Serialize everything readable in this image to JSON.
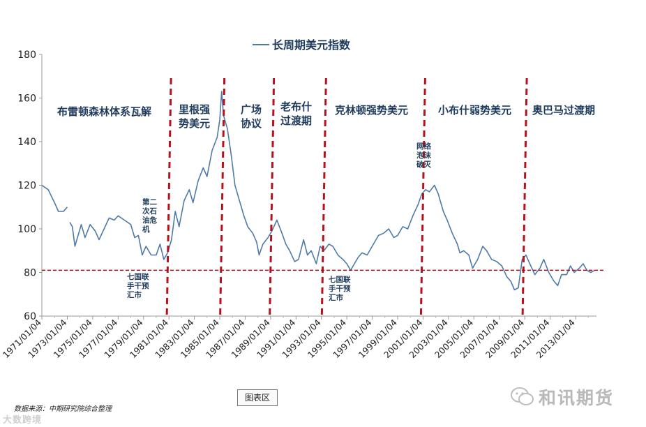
{
  "chart_data": {
    "type": "line",
    "title": "长周期美元指数",
    "xlabel": "",
    "ylabel": "",
    "ylim": [
      60,
      180
    ],
    "yticks": [
      60,
      80,
      100,
      120,
      140,
      160,
      180
    ],
    "reference_line": 81,
    "xticks": [
      "1971/01/04",
      "1973/01/04",
      "1975/01/04",
      "1977/01/04",
      "1979/01/04",
      "1981/01/04",
      "1983/01/04",
      "1985/01/04",
      "1987/01/04",
      "1989/01/04",
      "1991/01/04",
      "1993/01/04",
      "1995/01/04",
      "1997/01/04",
      "1999/01/04",
      "2001/01/04",
      "2003/01/04",
      "2005/01/04",
      "2007/01/04",
      "2009/01/04",
      "2011/01/04",
      "2013/01/04"
    ],
    "series": [
      {
        "name": "长周期美元指数",
        "color": "#4f7aa8",
        "points": [
          [
            1971.0,
            120
          ],
          [
            1971.5,
            118
          ],
          [
            1972.0,
            112
          ],
          [
            1972.3,
            108
          ],
          [
            1972.7,
            108
          ],
          [
            1973.0,
            110
          ],
          [
            1973.2,
            103
          ],
          [
            1973.4,
            101
          ],
          [
            1973.6,
            92
          ],
          [
            1973.8,
            96
          ],
          [
            1974.1,
            102
          ],
          [
            1974.4,
            96
          ],
          [
            1974.8,
            102
          ],
          [
            1975.2,
            99
          ],
          [
            1975.5,
            95
          ],
          [
            1975.9,
            100
          ],
          [
            1976.3,
            105
          ],
          [
            1976.7,
            104
          ],
          [
            1977.0,
            106
          ],
          [
            1977.5,
            104
          ],
          [
            1978.0,
            102
          ],
          [
            1978.3,
            96
          ],
          [
            1978.6,
            97
          ],
          [
            1978.9,
            88
          ],
          [
            1979.2,
            92
          ],
          [
            1979.6,
            88
          ],
          [
            1980.0,
            88
          ],
          [
            1980.3,
            93
          ],
          [
            1980.6,
            86
          ],
          [
            1980.9,
            89
          ],
          [
            1981.2,
            95
          ],
          [
            1981.5,
            108
          ],
          [
            1981.8,
            101
          ],
          [
            1982.2,
            113
          ],
          [
            1982.6,
            118
          ],
          [
            1982.9,
            112
          ],
          [
            1983.3,
            122
          ],
          [
            1983.7,
            128
          ],
          [
            1984.0,
            124
          ],
          [
            1984.4,
            136
          ],
          [
            1984.8,
            142
          ],
          [
            1985.0,
            150
          ],
          [
            1985.15,
            163
          ],
          [
            1985.3,
            152
          ],
          [
            1985.6,
            146
          ],
          [
            1985.9,
            134
          ],
          [
            1986.2,
            120
          ],
          [
            1986.6,
            112
          ],
          [
            1986.9,
            106
          ],
          [
            1987.2,
            101
          ],
          [
            1987.6,
            98
          ],
          [
            1987.9,
            94
          ],
          [
            1988.1,
            88
          ],
          [
            1988.4,
            93
          ],
          [
            1988.8,
            96
          ],
          [
            1989.1,
            99
          ],
          [
            1989.5,
            104
          ],
          [
            1989.9,
            98
          ],
          [
            1990.2,
            93
          ],
          [
            1990.5,
            90
          ],
          [
            1990.9,
            85
          ],
          [
            1991.2,
            86
          ],
          [
            1991.6,
            95
          ],
          [
            1991.9,
            88
          ],
          [
            1992.2,
            90
          ],
          [
            1992.6,
            84
          ],
          [
            1992.9,
            92
          ],
          [
            1993.2,
            90
          ],
          [
            1993.6,
            93
          ],
          [
            1993.9,
            92
          ],
          [
            1994.3,
            88
          ],
          [
            1994.7,
            86
          ],
          [
            1995.0,
            84
          ],
          [
            1995.3,
            81
          ],
          [
            1995.6,
            84
          ],
          [
            1995.9,
            87
          ],
          [
            1996.2,
            89
          ],
          [
            1996.6,
            88
          ],
          [
            1997.0,
            92
          ],
          [
            1997.5,
            97
          ],
          [
            1997.9,
            98
          ],
          [
            1998.3,
            100
          ],
          [
            1998.7,
            96
          ],
          [
            1999.0,
            97
          ],
          [
            1999.4,
            101
          ],
          [
            1999.8,
            100
          ],
          [
            2000.2,
            106
          ],
          [
            2000.6,
            111
          ],
          [
            2000.9,
            116
          ],
          [
            2001.2,
            118
          ],
          [
            2001.5,
            117
          ],
          [
            2001.9,
            120
          ],
          [
            2002.2,
            116
          ],
          [
            2002.6,
            108
          ],
          [
            2002.9,
            104
          ],
          [
            2003.3,
            98
          ],
          [
            2003.7,
            93
          ],
          [
            2003.9,
            89
          ],
          [
            2004.2,
            90
          ],
          [
            2004.6,
            88
          ],
          [
            2004.9,
            82
          ],
          [
            2005.3,
            86
          ],
          [
            2005.7,
            92
          ],
          [
            2006.0,
            90
          ],
          [
            2006.4,
            86
          ],
          [
            2006.8,
            85
          ],
          [
            2007.2,
            83
          ],
          [
            2007.6,
            78
          ],
          [
            2007.9,
            76
          ],
          [
            2008.2,
            72
          ],
          [
            2008.5,
            73
          ],
          [
            2008.8,
            86
          ],
          [
            2009.1,
            88
          ],
          [
            2009.4,
            84
          ],
          [
            2009.8,
            79
          ],
          [
            2010.2,
            82
          ],
          [
            2010.5,
            86
          ],
          [
            2010.9,
            80
          ],
          [
            2011.3,
            76
          ],
          [
            2011.6,
            74
          ],
          [
            2011.9,
            79
          ],
          [
            2012.3,
            79
          ],
          [
            2012.6,
            83
          ],
          [
            2012.9,
            80
          ],
          [
            2013.3,
            82
          ],
          [
            2013.6,
            84
          ],
          [
            2013.9,
            81
          ],
          [
            2014.2,
            80
          ],
          [
            2014.5,
            81
          ]
        ]
      }
    ],
    "dividers": [
      1981.0,
      1985.2,
      1989.1,
      1993.2,
      2001.0,
      2009.0
    ],
    "eras": [
      "布雷顿森林体系瓦解",
      "里根强势美元",
      "广场协议",
      "老布什过渡期",
      "克林顿强势美元",
      "小布什弱势美元",
      "奥巴马过渡期"
    ],
    "events": [
      "第二次石油危机",
      "七国联手干预汇市",
      "七国联手干预汇市",
      "网络泡沫破灭"
    ]
  },
  "footer": {
    "source": "数据来源：中期研究院综合整理",
    "chart_area_label": "图表区",
    "brand": "和讯期货",
    "watermark": "大数跨境"
  },
  "colors": {
    "line": "#4f7aa8",
    "divider": "#b5121b",
    "reference": "#a31515",
    "text": "#1f3b5c"
  }
}
